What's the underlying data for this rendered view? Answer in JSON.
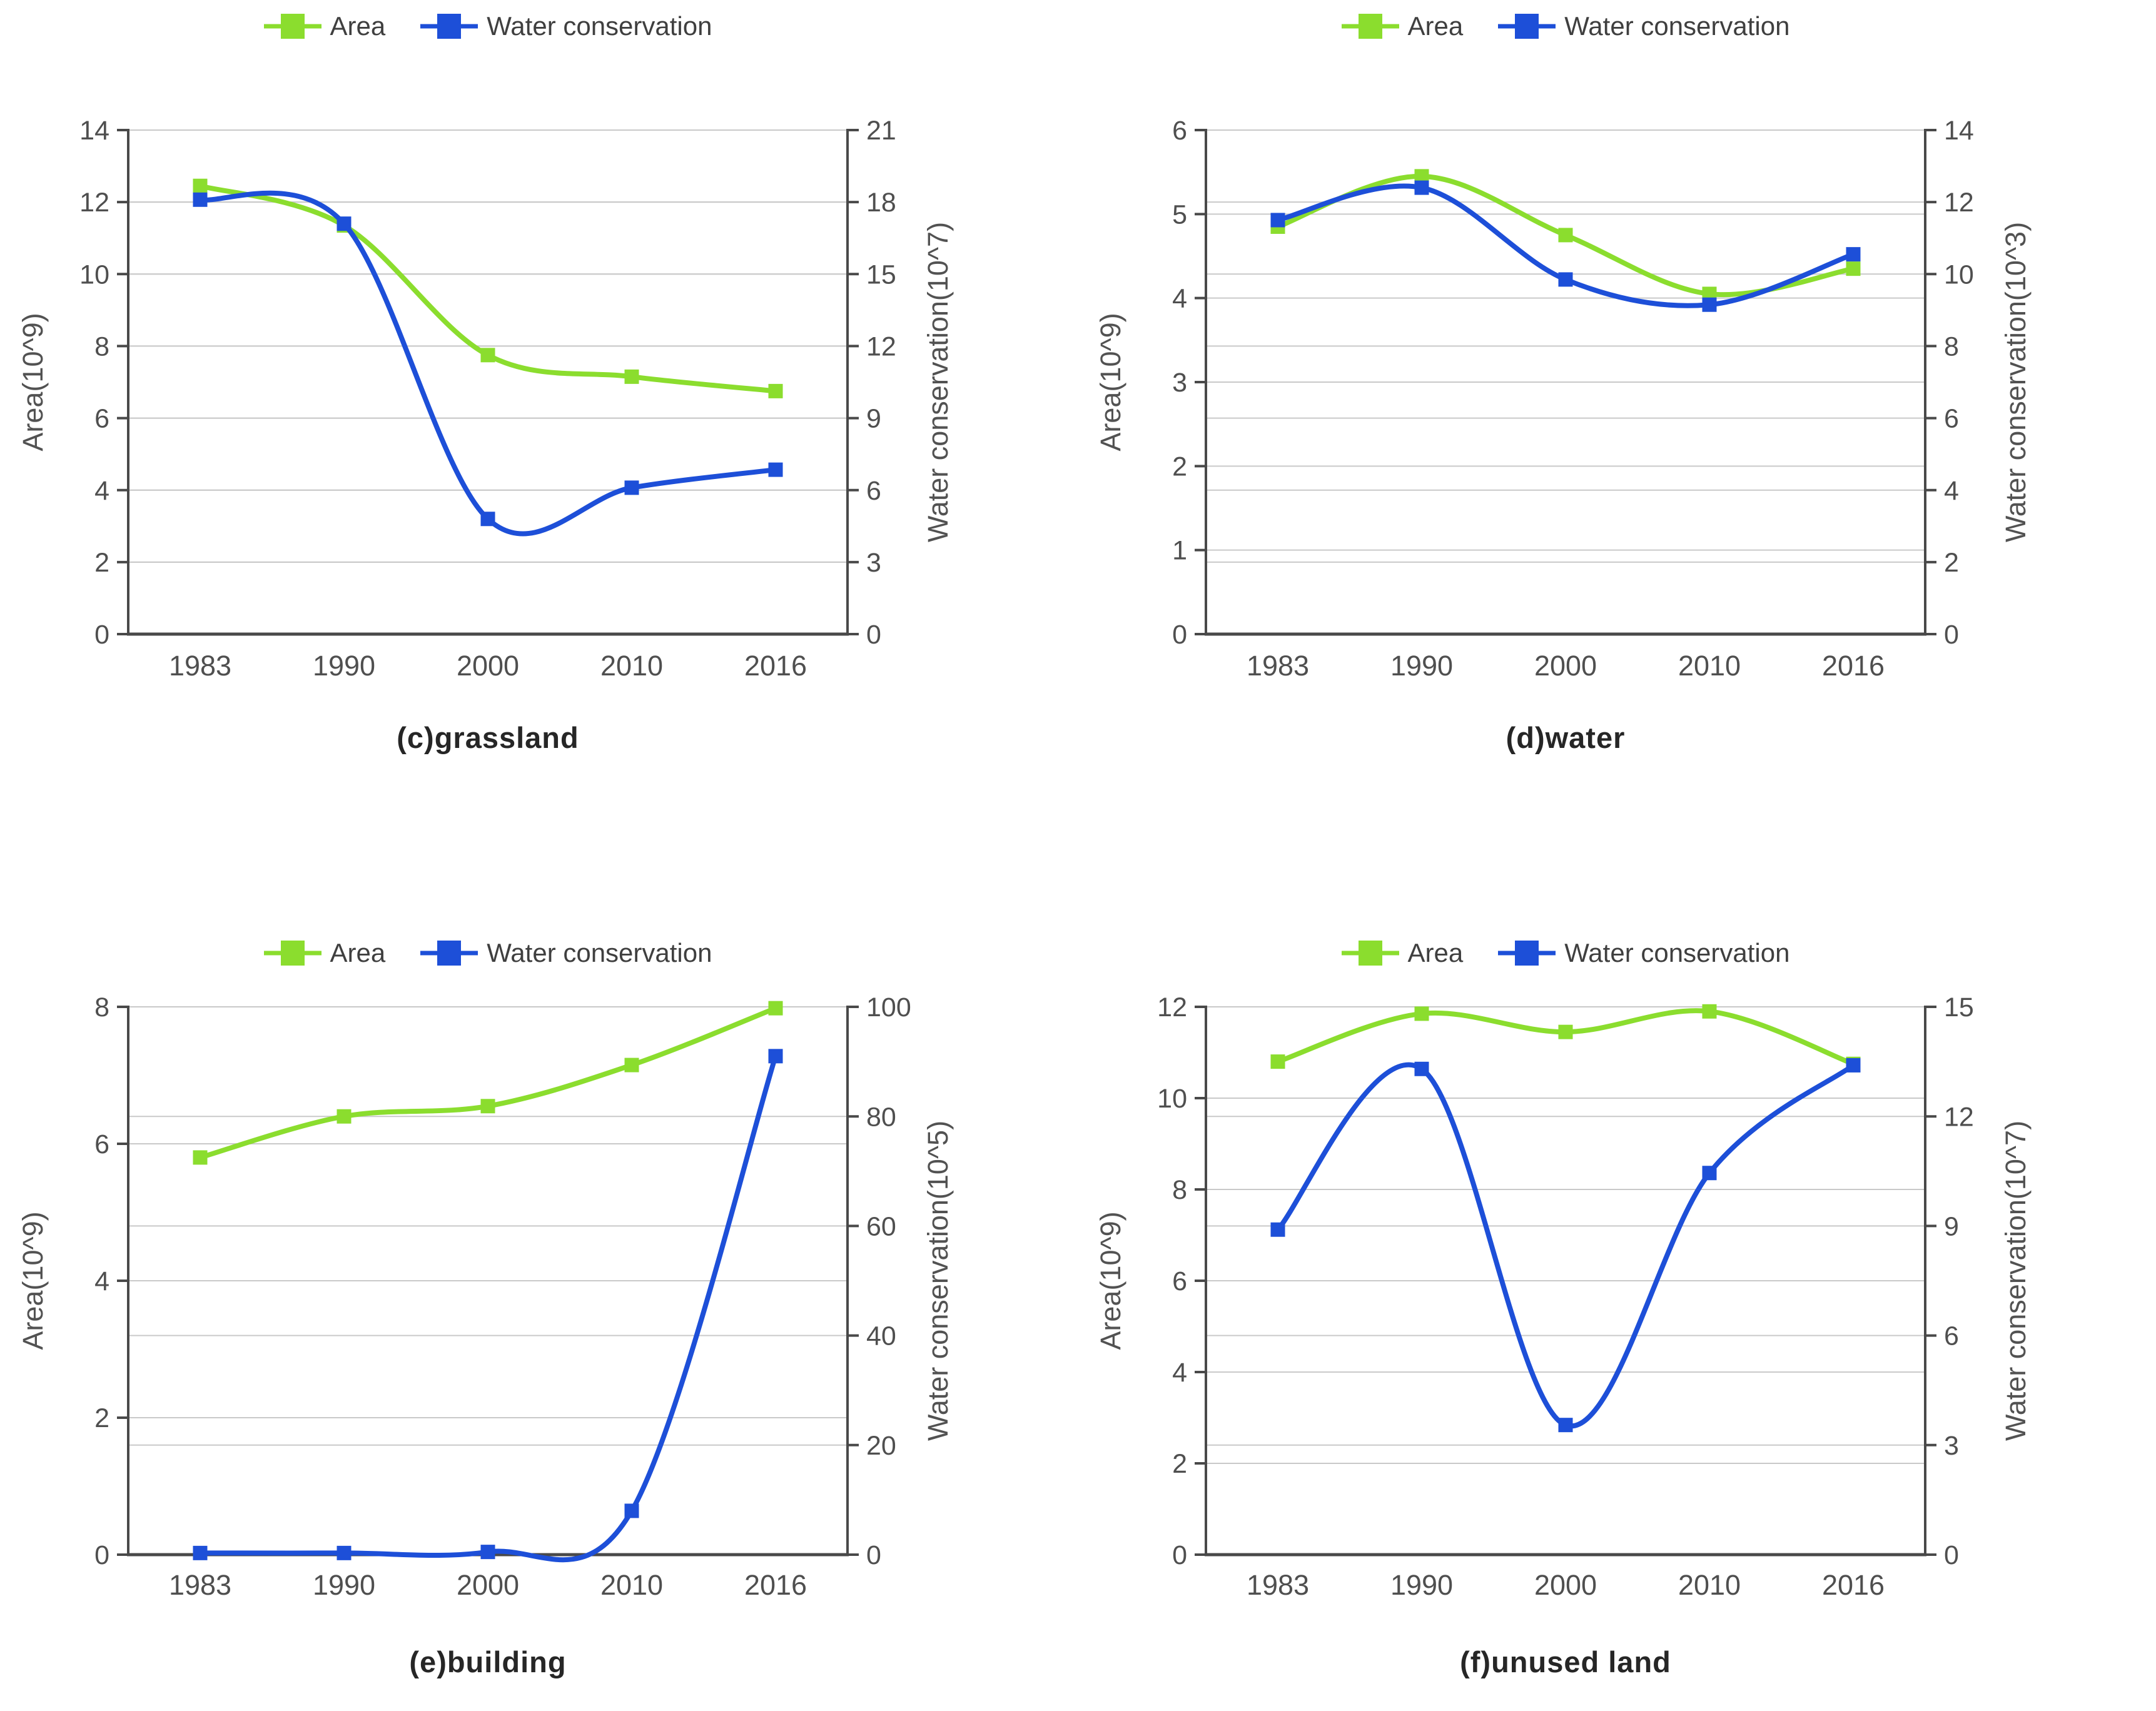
{
  "page": {
    "background": "#ffffff"
  },
  "colors": {
    "area_series": "#8bdd2e",
    "water_series": "#1d4fd8",
    "grid_line": "#c9c9c9",
    "axis_line": "#494949",
    "tick_text": "#4f4f4f",
    "axis_name_text": "#525252",
    "legend_text": "#3f3f3f",
    "title_text": "#262626"
  },
  "chart_data": [
    {
      "id": "c",
      "type": "line",
      "title": "(c)grassland",
      "smooth": true,
      "grid": true,
      "legend_position": "top",
      "legend": [
        "Area",
        "Water conservation"
      ],
      "categories": [
        "1983",
        "1990",
        "2000",
        "2010",
        "2016"
      ],
      "left_axis": {
        "label": "Area(10^9)",
        "min": 0,
        "max": 14,
        "step": 2
      },
      "right_axis": {
        "label": "Water conservation(10^7)",
        "min": 0,
        "max": 21,
        "step": 3
      },
      "series": [
        {
          "name": "Area",
          "axis": "left",
          "color_key": "area_series",
          "marker": "square",
          "values": [
            12.45,
            11.35,
            7.75,
            7.15,
            6.75
          ]
        },
        {
          "name": "Water conservation",
          "axis": "right",
          "color_key": "water_series",
          "marker": "square",
          "values": [
            18.1,
            17.1,
            4.8,
            6.1,
            6.85
          ]
        }
      ]
    },
    {
      "id": "d",
      "type": "line",
      "title": "(d)water",
      "smooth": true,
      "grid": true,
      "legend_position": "top",
      "legend": [
        "Area",
        "Water conservation"
      ],
      "categories": [
        "1983",
        "1990",
        "2000",
        "2010",
        "2016"
      ],
      "left_axis": {
        "label": "Area(10^9)",
        "min": 0,
        "max": 6,
        "step": 1
      },
      "right_axis": {
        "label": "Water conservation(10^3)",
        "min": 0,
        "max": 14,
        "step": 2
      },
      "series": [
        {
          "name": "Area",
          "axis": "left",
          "color_key": "area_series",
          "marker": "square",
          "values": [
            4.85,
            5.45,
            4.75,
            4.05,
            4.35
          ]
        },
        {
          "name": "Water conservation",
          "axis": "right",
          "color_key": "water_series",
          "marker": "square",
          "values": [
            11.5,
            12.4,
            9.85,
            9.15,
            10.55
          ]
        }
      ]
    },
    {
      "id": "e",
      "type": "line",
      "title": "(e)building",
      "smooth": true,
      "grid": true,
      "legend_position": "top",
      "legend": [
        "Area",
        "Water conservation"
      ],
      "categories": [
        "1983",
        "1990",
        "2000",
        "2010",
        "2016"
      ],
      "left_axis": {
        "label": "Area(10^9)",
        "min": 0,
        "max": 8,
        "step": 2
      },
      "right_axis": {
        "label": "Water conservation(10^5)",
        "min": 0,
        "max": 100,
        "step": 20
      },
      "series": [
        {
          "name": "Area",
          "axis": "left",
          "color_key": "area_series",
          "marker": "square",
          "values": [
            5.8,
            6.4,
            6.55,
            7.15,
            7.98
          ]
        },
        {
          "name": "Water conservation",
          "axis": "right",
          "color_key": "water_series",
          "marker": "square",
          "values": [
            0.3,
            0.3,
            0.5,
            8,
            91
          ]
        }
      ]
    },
    {
      "id": "f",
      "type": "line",
      "title": "(f)unused land",
      "smooth": true,
      "grid": true,
      "legend_position": "top",
      "legend": [
        "Area",
        "Water conservation"
      ],
      "categories": [
        "1983",
        "1990",
        "2000",
        "2010",
        "2016"
      ],
      "left_axis": {
        "label": "Area(10^9)",
        "min": 0,
        "max": 12,
        "step": 2
      },
      "right_axis": {
        "label": "Water conservation(10^7)",
        "min": 0,
        "max": 15,
        "step": 3
      },
      "series": [
        {
          "name": "Area",
          "axis": "left",
          "color_key": "area_series",
          "marker": "square",
          "values": [
            10.8,
            11.85,
            11.45,
            11.9,
            10.75
          ]
        },
        {
          "name": "Water conservation",
          "axis": "right",
          "color_key": "water_series",
          "marker": "square",
          "values": [
            8.9,
            13.3,
            3.55,
            10.45,
            13.4
          ]
        }
      ]
    }
  ]
}
